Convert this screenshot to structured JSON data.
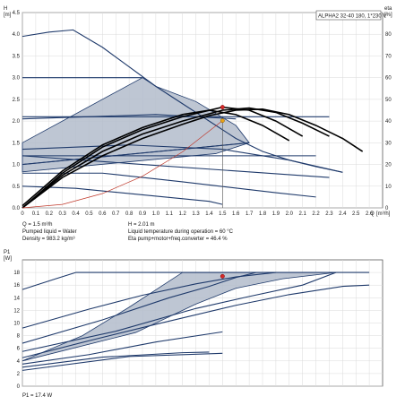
{
  "chart_data": [
    {
      "type": "line",
      "title": "ALPHA2 32-40 180, 1*230 V",
      "ylabel": "H",
      "yunit": "[m]",
      "y2label": "eta",
      "y2unit": "[%]",
      "xlabel": "Q",
      "xunit": "[m³/h]",
      "xlim": [
        0,
        2.7
      ],
      "ylim": [
        0,
        4.5
      ],
      "y2lim": [
        0,
        90
      ],
      "x_ticks": [
        0,
        0.1,
        0.2,
        0.3,
        0.4,
        0.5,
        0.6,
        0.7,
        0.8,
        0.9,
        1.0,
        1.1,
        1.2,
        1.3,
        1.4,
        1.5,
        1.6,
        1.7,
        1.8,
        1.9,
        2.0,
        2.1,
        2.2,
        2.3,
        2.4,
        2.5,
        2.6
      ],
      "y_ticks": [
        0,
        0.5,
        1.0,
        1.5,
        2.0,
        2.5,
        3.0,
        3.5,
        4.0,
        4.5
      ],
      "y2_ticks": [
        0,
        10,
        20,
        30,
        40,
        50,
        60,
        70,
        80
      ],
      "grid": true,
      "shaded_regions": [
        [
          [
            0,
            1.5
          ],
          [
            0.9,
            3.0
          ],
          [
            1.0,
            2.8
          ],
          [
            1.3,
            2.45
          ],
          [
            1.6,
            1.9
          ],
          [
            1.7,
            1.5
          ],
          [
            0,
            1.0
          ]
        ],
        [
          [
            0,
            1.0
          ],
          [
            1.7,
            1.5
          ],
          [
            1.45,
            1.25
          ],
          [
            0,
            0.83
          ]
        ]
      ],
      "series": [
        {
          "role": "max-curve",
          "points": [
            [
              0,
              3.95
            ],
            [
              0.2,
              4.05
            ],
            [
              0.38,
              4.1
            ],
            [
              0.6,
              3.7
            ],
            [
              0.8,
              3.25
            ],
            [
              1.0,
              2.8
            ],
            [
              1.2,
              2.4
            ],
            [
              1.4,
              2.0
            ],
            [
              1.6,
              1.6
            ],
            [
              1.8,
              1.3
            ],
            [
              2.0,
              1.1
            ],
            [
              2.2,
              0.95
            ],
            [
              2.4,
              0.82
            ]
          ],
          "color": "#1f3a6b"
        },
        {
          "role": "const-pressure-high",
          "points": [
            [
              0,
              3.0
            ],
            [
              0.9,
              3.0
            ]
          ],
          "color": "#1f3a6b"
        },
        {
          "role": "const-pressure",
          "points": [
            [
              0,
              2.1
            ],
            [
              2.3,
              2.1
            ]
          ],
          "color": "#1f3a6b"
        },
        {
          "role": "const-pressure",
          "points": [
            [
              0,
              1.2
            ],
            [
              2.2,
              1.2
            ]
          ],
          "color": "#1f3a6b"
        },
        {
          "role": "prop-pressure",
          "points": [
            [
              0,
              2.05
            ],
            [
              1.0,
              2.15
            ],
            [
              1.6,
              2.05
            ]
          ],
          "color": "#1f3a6b"
        },
        {
          "role": "prop-pressure",
          "points": [
            [
              0,
              1.0
            ],
            [
              1.7,
              1.5
            ]
          ],
          "color": "#1f3a6b"
        },
        {
          "role": "speed-curve",
          "points": [
            [
              0,
              1.2
            ],
            [
              0.9,
              1.0
            ],
            [
              1.6,
              0.85
            ],
            [
              2.3,
              0.7
            ]
          ],
          "color": "#1f3a6b"
        },
        {
          "role": "speed-curve",
          "points": [
            [
              0,
              0.8
            ],
            [
              0.6,
              0.8
            ],
            [
              1.2,
              0.6
            ],
            [
              1.9,
              0.35
            ],
            [
              2.2,
              0.25
            ]
          ],
          "color": "#1f3a6b"
        },
        {
          "role": "speed-curve",
          "points": [
            [
              0,
              0.5
            ],
            [
              0.4,
              0.45
            ],
            [
              0.9,
              0.3
            ],
            [
              1.4,
              0.15
            ],
            [
              1.5,
              0.08
            ]
          ],
          "color": "#1f3a6b"
        },
        {
          "role": "speed-curve",
          "points": [
            [
              0,
              1.35
            ],
            [
              0.8,
              1.45
            ],
            [
              1.5,
              1.35
            ],
            [
              2.0,
              1.1
            ],
            [
              2.4,
              0.82
            ]
          ],
          "color": "#1f3a6b"
        },
        {
          "role": "eta-curve",
          "points": [
            [
              0,
              0
            ],
            [
              0.3,
              14
            ],
            [
              0.6,
              24
            ],
            [
              0.9,
              32
            ],
            [
              1.2,
              38.5
            ],
            [
              1.4,
              42.5
            ],
            [
              1.6,
              45
            ],
            [
              1.8,
              45.5
            ],
            [
              2.0,
              43
            ],
            [
              2.2,
              38
            ],
            [
              2.4,
              32
            ],
            [
              2.55,
              26
            ]
          ],
          "color": "#000000"
        },
        {
          "role": "eta-curve",
          "points": [
            [
              0,
              0
            ],
            [
              0.3,
              15
            ],
            [
              0.6,
              26
            ],
            [
              0.9,
              34
            ],
            [
              1.2,
              40
            ],
            [
              1.5,
              45
            ],
            [
              1.7,
              46
            ],
            [
              1.9,
              44
            ],
            [
              2.1,
              39
            ],
            [
              2.3,
              33
            ]
          ],
          "color": "#000000"
        },
        {
          "role": "eta-curve",
          "points": [
            [
              0,
              0
            ],
            [
              0.3,
              16
            ],
            [
              0.6,
              28
            ],
            [
              0.9,
              36
            ],
            [
              1.2,
              42
            ],
            [
              1.5,
              46.4
            ],
            [
              1.7,
              45
            ],
            [
              1.9,
              40
            ],
            [
              2.1,
              33
            ]
          ],
          "color": "#000000"
        },
        {
          "role": "eta-curve",
          "points": [
            [
              0,
              1
            ],
            [
              0.3,
              17
            ],
            [
              0.6,
              29
            ],
            [
              0.9,
              37
            ],
            [
              1.2,
              43
            ],
            [
              1.4,
              45
            ],
            [
              1.6,
              43
            ],
            [
              1.8,
              38
            ],
            [
              2.0,
              31
            ]
          ],
          "color": "#000000"
        },
        {
          "role": "system-curve",
          "points": [
            [
              0,
              0
            ],
            [
              0.3,
              0.08
            ],
            [
              0.6,
              0.33
            ],
            [
              0.9,
              0.73
            ],
            [
              1.2,
              1.29
            ],
            [
              1.5,
              2.01
            ]
          ],
          "color": "#c0392b"
        }
      ],
      "duty_point": {
        "q": 1.5,
        "h": 2.01,
        "eta": 46.4
      },
      "info": {
        "q": "Q = 1.5 m³/h",
        "h": "H = 2.01 m",
        "liquid": "Pumped liquid = Water",
        "temp": "Liquid temperature during operation = 60 °C",
        "density": "Density = 983.2 kg/m³",
        "eta": "Eta pump+motor+freq.converter = 46.4 %"
      }
    },
    {
      "type": "line",
      "ylabel": "P1",
      "yunit": "[W]",
      "xlim": [
        0,
        2.7
      ],
      "ylim": [
        0,
        20
      ],
      "y_ticks": [
        0,
        2,
        4,
        6,
        8,
        10,
        12,
        14,
        16,
        18
      ],
      "grid": true,
      "shaded_regions": [
        [
          [
            0,
            4
          ],
          [
            0.85,
            8.5
          ],
          [
            1.3,
            13
          ],
          [
            1.6,
            15.5
          ],
          [
            1.95,
            17
          ],
          [
            2.35,
            18
          ],
          [
            1.2,
            18
          ],
          [
            0.8,
            12.5
          ],
          [
            0.45,
            8
          ],
          [
            0,
            4
          ]
        ]
      ],
      "series": [
        {
          "role": "max-curve",
          "points": [
            [
              0,
              9.2
            ],
            [
              0.5,
              12.2
            ],
            [
              0.9,
              14.4
            ],
            [
              1.3,
              16.2
            ],
            [
              1.6,
              17.3
            ],
            [
              1.9,
              18
            ]
          ],
          "color": "#1f3a6b"
        },
        {
          "role": "cap",
          "points": [
            [
              0.4,
              18
            ],
            [
              2.6,
              18
            ]
          ],
          "color": "#1f3a6b"
        },
        {
          "role": "rise",
          "points": [
            [
              0,
              15.3
            ],
            [
              0.25,
              17
            ],
            [
              0.4,
              18
            ]
          ],
          "color": "#1f3a6b"
        },
        {
          "role": "const",
          "points": [
            [
              0,
              4.5
            ],
            [
              0.5,
              7.2
            ],
            [
              1.0,
              9.8
            ],
            [
              1.6,
              12.8
            ],
            [
              2.0,
              14.5
            ],
            [
              2.4,
              15.8
            ],
            [
              2.6,
              16
            ]
          ],
          "color": "#1f3a6b"
        },
        {
          "role": "speed",
          "points": [
            [
              0,
              3.0
            ],
            [
              0.6,
              4.6
            ],
            [
              1.2,
              5.3
            ],
            [
              1.4,
              5.4
            ]
          ],
          "color": "#1f3a6b"
        },
        {
          "role": "speed",
          "points": [
            [
              0,
              2.5
            ],
            [
              0.8,
              4.7
            ],
            [
              1.5,
              5.2
            ]
          ],
          "color": "#1f3a6b"
        },
        {
          "role": "speed",
          "points": [
            [
              0,
              6.8
            ],
            [
              0.6,
              10.5
            ],
            [
              1.1,
              14.0
            ],
            [
              1.4,
              15.8
            ],
            [
              1.6,
              17.2
            ],
            [
              1.75,
              18
            ]
          ],
          "color": "#1f3a6b"
        },
        {
          "role": "speed",
          "points": [
            [
              0,
              5.5
            ],
            [
              0.7,
              8.7
            ],
            [
              1.3,
              12.3
            ],
            [
              1.7,
              14.2
            ],
            [
              2.1,
              16.0
            ],
            [
              2.35,
              18
            ]
          ],
          "color": "#1f3a6b"
        },
        {
          "role": "speed",
          "points": [
            [
              0,
              3.5
            ],
            [
              0.5,
              5.0
            ],
            [
              1.0,
              7.0
            ],
            [
              1.5,
              8.6
            ]
          ],
          "color": "#1f3a6b"
        }
      ],
      "duty_point": {
        "q": 1.5,
        "p1": 17.4
      },
      "info": {
        "p1": "P1 = 17.4 W"
      }
    }
  ]
}
